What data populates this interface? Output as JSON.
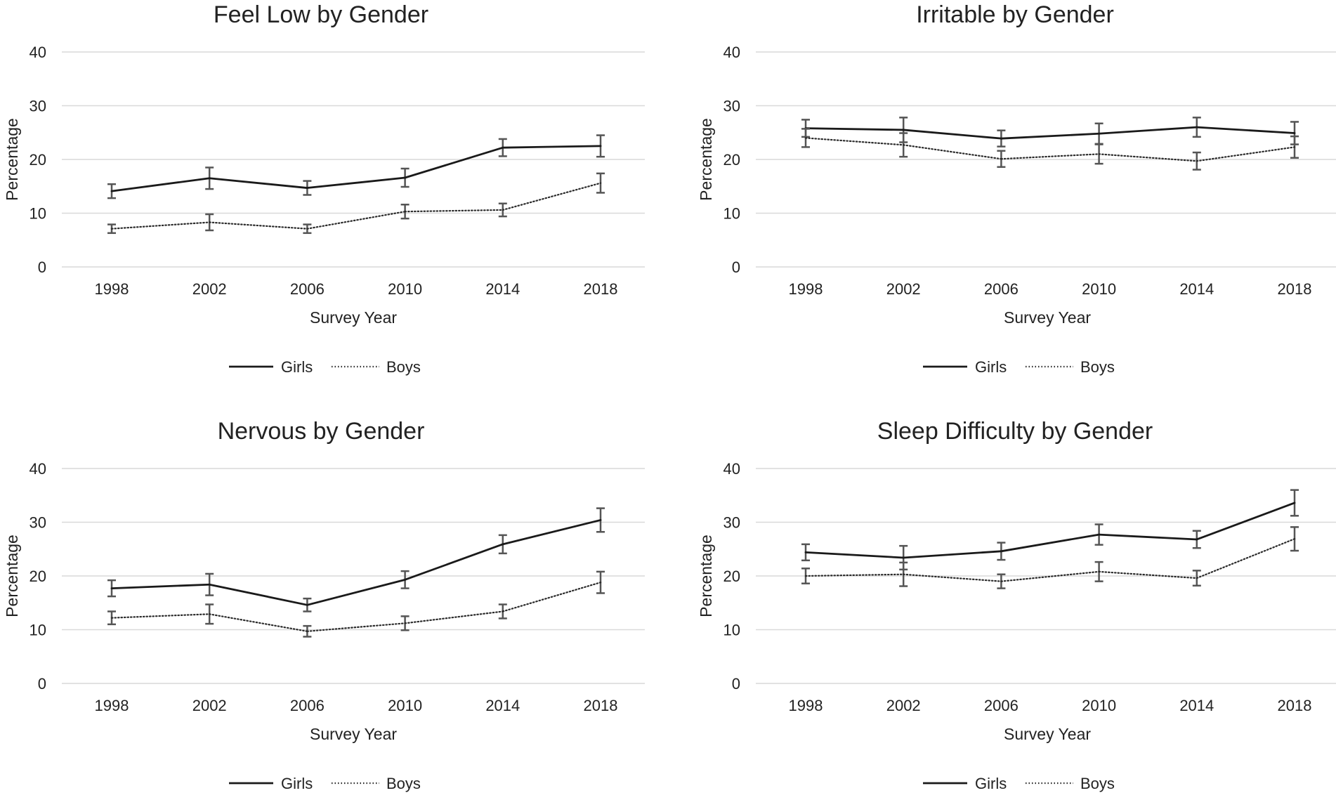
{
  "chart_data": [
    {
      "type": "line",
      "title": "Feel Low by Gender",
      "xlabel": "Survey Year",
      "ylabel": "Percentage",
      "categories": [
        "1998",
        "2002",
        "2006",
        "2010",
        "2014",
        "2018"
      ],
      "yticks": [
        "0",
        "10",
        "20",
        "30",
        "40"
      ],
      "ylim": [
        0,
        40
      ],
      "grid": true,
      "legend": "bottom",
      "series": [
        {
          "name": "Girls",
          "style": "solid",
          "values": [
            14.1,
            16.5,
            14.7,
            16.6,
            22.2,
            22.5
          ],
          "errors": [
            1.3,
            2.0,
            1.3,
            1.7,
            1.6,
            2.0
          ]
        },
        {
          "name": "Boys",
          "style": "dotted",
          "values": [
            7.1,
            8.3,
            7.1,
            10.3,
            10.6,
            15.6
          ],
          "errors": [
            0.8,
            1.5,
            0.8,
            1.3,
            1.2,
            1.8
          ]
        }
      ]
    },
    {
      "type": "line",
      "title": "Irritable by Gender",
      "xlabel": "Survey Year",
      "ylabel": "Percentage",
      "categories": [
        "1998",
        "2002",
        "2006",
        "2010",
        "2014",
        "2018"
      ],
      "yticks": [
        "0",
        "10",
        "20",
        "30",
        "40"
      ],
      "ylim": [
        0,
        40
      ],
      "grid": true,
      "legend": "bottom",
      "series": [
        {
          "name": "Girls",
          "style": "solid",
          "values": [
            25.8,
            25.5,
            23.9,
            24.8,
            26.0,
            24.9
          ],
          "errors": [
            1.6,
            2.3,
            1.5,
            1.9,
            1.8,
            2.1
          ]
        },
        {
          "name": "Boys",
          "style": "dotted",
          "values": [
            24.0,
            22.7,
            20.1,
            21.0,
            19.7,
            22.3
          ],
          "errors": [
            1.7,
            2.2,
            1.5,
            1.8,
            1.6,
            2.0
          ]
        }
      ]
    },
    {
      "type": "line",
      "title": "Nervous by Gender",
      "xlabel": "Survey Year",
      "ylabel": "Percentage",
      "categories": [
        "1998",
        "2002",
        "2006",
        "2010",
        "2014",
        "2018"
      ],
      "yticks": [
        "0",
        "10",
        "20",
        "30",
        "40"
      ],
      "ylim": [
        0,
        40
      ],
      "grid": true,
      "legend": "bottom",
      "series": [
        {
          "name": "Girls",
          "style": "solid",
          "values": [
            17.7,
            18.4,
            14.6,
            19.3,
            25.9,
            30.4
          ],
          "errors": [
            1.5,
            2.0,
            1.2,
            1.6,
            1.7,
            2.2
          ]
        },
        {
          "name": "Boys",
          "style": "dotted",
          "values": [
            12.2,
            12.9,
            9.7,
            11.2,
            13.4,
            18.8
          ],
          "errors": [
            1.2,
            1.8,
            1.0,
            1.3,
            1.3,
            2.0
          ]
        }
      ]
    },
    {
      "type": "line",
      "title": "Sleep Difficulty by Gender",
      "xlabel": "Survey Year",
      "ylabel": "Percentage",
      "categories": [
        "1998",
        "2002",
        "2006",
        "2010",
        "2014",
        "2018"
      ],
      "yticks": [
        "0",
        "10",
        "20",
        "30",
        "40"
      ],
      "ylim": [
        0,
        40
      ],
      "grid": true,
      "legend": "bottom",
      "series": [
        {
          "name": "Girls",
          "style": "solid",
          "values": [
            24.4,
            23.4,
            24.6,
            27.7,
            26.8,
            33.6
          ],
          "errors": [
            1.5,
            2.2,
            1.6,
            1.9,
            1.6,
            2.4
          ]
        },
        {
          "name": "Boys",
          "style": "dotted",
          "values": [
            20.0,
            20.3,
            19.0,
            20.8,
            19.6,
            26.9
          ],
          "errors": [
            1.4,
            2.2,
            1.3,
            1.8,
            1.4,
            2.2
          ]
        }
      ]
    }
  ]
}
